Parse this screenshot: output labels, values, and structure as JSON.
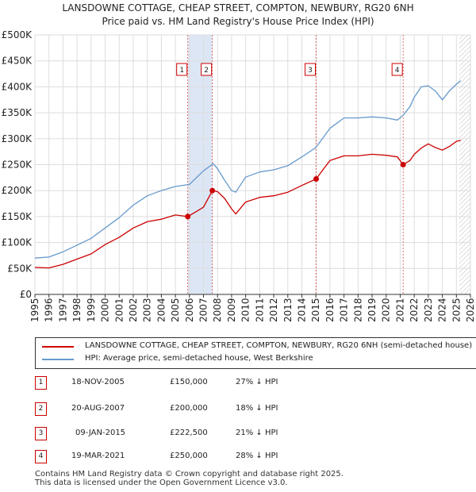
{
  "chart_data": {
    "type": "line",
    "title": "LANSDOWNE COTTAGE, CHEAP STREET, COMPTON, NEWBURY, RG20 6NH",
    "subtitle": "Price paid vs. HM Land Registry's House Price Index (HPI)",
    "xlim": [
      1995,
      2026
    ],
    "ylim": [
      0,
      500000
    ],
    "x_ticks": [
      "1995",
      "1996",
      "1997",
      "1998",
      "1999",
      "2000",
      "2001",
      "2002",
      "2003",
      "2004",
      "2005",
      "2006",
      "2007",
      "2008",
      "2009",
      "2010",
      "2011",
      "2012",
      "2013",
      "2014",
      "2015",
      "2016",
      "2017",
      "2018",
      "2019",
      "2020",
      "2021",
      "2022",
      "2023",
      "2024",
      "2025",
      "2026"
    ],
    "y_ticks": [
      {
        "value": 0,
        "label": "£0"
      },
      {
        "value": 50000,
        "label": "£50K"
      },
      {
        "value": 100000,
        "label": "£100K"
      },
      {
        "value": 150000,
        "label": "£150K"
      },
      {
        "value": 200000,
        "label": "£200K"
      },
      {
        "value": 250000,
        "label": "£250K"
      },
      {
        "value": 300000,
        "label": "£300K"
      },
      {
        "value": 350000,
        "label": "£350K"
      },
      {
        "value": 400000,
        "label": "£400K"
      },
      {
        "value": 450000,
        "label": "£450K"
      },
      {
        "value": 500000,
        "label": "£500K"
      }
    ],
    "series": [
      {
        "name": "LANSDOWNE COTTAGE, CHEAP STREET, COMPTON, NEWBURY, RG20 6NH (semi-detached house)",
        "color": "#cc0000",
        "x": [
          1995.0,
          1996.0,
          1997.0,
          1998.0,
          1999.0,
          2000.0,
          2001.0,
          2002.0,
          2003.0,
          2004.0,
          2005.0,
          2005.88,
          2006.5,
          2007.0,
          2007.63,
          2008.0,
          2008.5,
          2009.0,
          2009.3,
          2010.0,
          2011.0,
          2012.0,
          2013.0,
          2014.0,
          2015.02,
          2015.5,
          2016.0,
          2017.0,
          2018.0,
          2019.0,
          2020.0,
          2020.8,
          2021.21,
          2021.7,
          2022.0,
          2022.5,
          2023.0,
          2023.5,
          2024.0,
          2024.5,
          2025.0,
          2025.3
        ],
        "y": [
          52000,
          51000,
          58000,
          68000,
          78000,
          96000,
          110000,
          128000,
          140000,
          145000,
          153000,
          150000,
          160000,
          168000,
          200000,
          198000,
          185000,
          165000,
          155000,
          178000,
          187000,
          190000,
          197000,
          210000,
          222500,
          240000,
          258000,
          267000,
          267000,
          270000,
          268000,
          265000,
          250000,
          258000,
          270000,
          282000,
          290000,
          283000,
          278000,
          285000,
          295000,
          297000
        ]
      },
      {
        "name": "HPI: Average price, semi-detached house, West Berkshire",
        "color": "#6699cc",
        "x": [
          1995.0,
          1996.0,
          1997.0,
          1998.0,
          1999.0,
          2000.0,
          2001.0,
          2002.0,
          2003.0,
          2004.0,
          2005.0,
          2006.0,
          2007.0,
          2007.7,
          2008.0,
          2008.5,
          2009.0,
          2009.3,
          2010.0,
          2011.0,
          2012.0,
          2013.0,
          2014.0,
          2015.0,
          2016.0,
          2017.0,
          2018.0,
          2019.0,
          2020.0,
          2020.8,
          2021.2,
          2021.7,
          2022.0,
          2022.5,
          2023.0,
          2023.5,
          2024.0,
          2024.5,
          2025.0,
          2025.3
        ],
        "y": [
          70000,
          72000,
          82000,
          95000,
          108000,
          128000,
          148000,
          172000,
          190000,
          200000,
          208000,
          212000,
          238000,
          252000,
          242000,
          220000,
          200000,
          197000,
          226000,
          236000,
          240000,
          248000,
          265000,
          283000,
          320000,
          340000,
          340000,
          342000,
          340000,
          336000,
          345000,
          362000,
          380000,
          400000,
          402000,
          392000,
          375000,
          392000,
          405000,
          412000
        ]
      }
    ],
    "sales": [
      {
        "num": "1",
        "x": 2005.88,
        "y": 150000,
        "date": "18-NOV-2005",
        "price": "£150,000",
        "hpi": "27% ↓ HPI"
      },
      {
        "num": "2",
        "x": 2007.63,
        "y": 200000,
        "date": "20-AUG-2007",
        "price": "£200,000",
        "hpi": "18% ↓ HPI"
      },
      {
        "num": "3",
        "x": 2015.02,
        "y": 222500,
        "date": "09-JAN-2015",
        "price": "£222,500",
        "hpi": "21% ↓ HPI"
      },
      {
        "num": "4",
        "x": 2021.21,
        "y": 250000,
        "date": "19-MAR-2021",
        "price": "£250,000",
        "hpi": "28% ↓ HPI"
      }
    ],
    "shaded_period": [
      2005.88,
      2007.63
    ],
    "forecast_start": 2025.2
  },
  "legend": {
    "property": "LANSDOWNE COTTAGE, CHEAP STREET, COMPTON, NEWBURY, RG20 6NH (semi-detached house)",
    "hpi": "HPI: Average price, semi-detached house, West Berkshire"
  },
  "footer": {
    "line1": "Contains HM Land Registry data © Crown copyright and database right 2025.",
    "line2": "This data is licensed under the Open Government Licence v3.0."
  },
  "colors": {
    "property": "#cc0000",
    "hpi": "#6699cc",
    "shade": "#dde6f5",
    "grid": "#dddddd",
    "plot_bg": "#ffffff"
  }
}
